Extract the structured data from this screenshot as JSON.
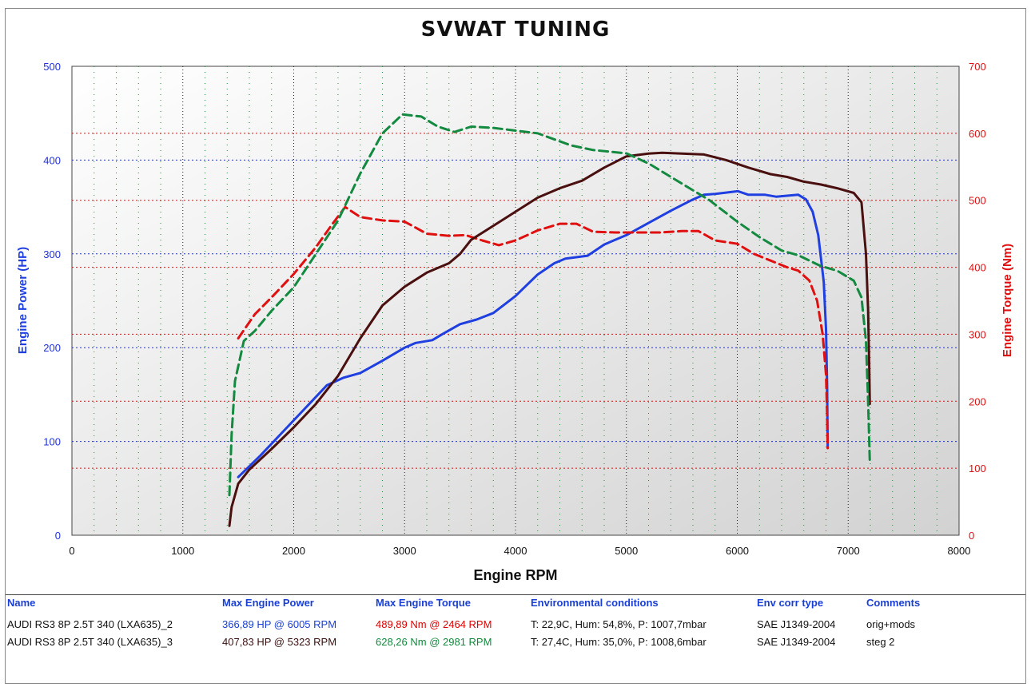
{
  "header": {
    "title": "SVWAT TUNING"
  },
  "chart_data": {
    "type": "line",
    "xlabel": "Engine RPM",
    "ylabel": "Engine Power (HP)",
    "y2label": "Engine Torque (Nm)",
    "xlim": [
      0,
      8000
    ],
    "ylim": [
      0,
      500
    ],
    "y2lim": [
      0,
      700
    ],
    "xticks": [
      "0",
      "1000",
      "2000",
      "3000",
      "4000",
      "5000",
      "6000",
      "7000",
      "8000"
    ],
    "yticks": [
      "0",
      "100",
      "200",
      "300",
      "400",
      "500"
    ],
    "y2ticks": [
      "0",
      "100",
      "200",
      "300",
      "400",
      "500",
      "600",
      "700"
    ],
    "grid": true,
    "series": [
      {
        "axis": "power",
        "style": "solid",
        "color": "#1f3fe0",
        "x": [
          1500,
          1700,
          1900,
          2100,
          2300,
          2450,
          2600,
          2800,
          3000,
          3100,
          3250,
          3350,
          3500,
          3650,
          3800,
          4000,
          4200,
          4350,
          4450,
          4650,
          4800,
          5000,
          5200,
          5400,
          5600,
          5700,
          5800,
          5950,
          6005,
          6100,
          6250,
          6350,
          6450,
          6550,
          6620,
          6680,
          6730,
          6780,
          6800,
          6810,
          6815
        ],
        "y": [
          62,
          85,
          110,
          135,
          160,
          168,
          173,
          186,
          200,
          205,
          208,
          215,
          225,
          230,
          237,
          255,
          278,
          290,
          295,
          298,
          310,
          320,
          333,
          346,
          358,
          363,
          364,
          366,
          366.9,
          363,
          363,
          361,
          362,
          363,
          358,
          345,
          320,
          270,
          220,
          160,
          95
        ]
      },
      {
        "axis": "torque",
        "style": "dashed",
        "color": "#e01010",
        "x": [
          1500,
          1650,
          1800,
          2000,
          2200,
          2350,
          2464,
          2600,
          2800,
          3000,
          3200,
          3400,
          3550,
          3700,
          3850,
          4000,
          4200,
          4400,
          4550,
          4700,
          4900,
          5100,
          5300,
          5500,
          5650,
          5800,
          6000,
          6150,
          6300,
          6450,
          6550,
          6650,
          6720,
          6770,
          6800,
          6810,
          6815
        ],
        "y": [
          294,
          330,
          355,
          390,
          430,
          465,
          489.9,
          475,
          470,
          468,
          450,
          447,
          448,
          440,
          433,
          440,
          455,
          465,
          465,
          453,
          452,
          452,
          452,
          454,
          454,
          440,
          435,
          420,
          410,
          400,
          395,
          380,
          350,
          300,
          240,
          180,
          130
        ]
      },
      {
        "axis": "power",
        "style": "solid",
        "color": "#4a0f0f",
        "x": [
          1420,
          1440,
          1500,
          1600,
          1800,
          2000,
          2200,
          2400,
          2600,
          2800,
          3000,
          3200,
          3400,
          3500,
          3600,
          3800,
          4000,
          4200,
          4400,
          4600,
          4800,
          5000,
          5200,
          5323,
          5500,
          5700,
          5900,
          6100,
          6300,
          6450,
          6600,
          6750,
          6900,
          7050,
          7120,
          7160,
          7180,
          7190,
          7195
        ],
        "y": [
          10,
          30,
          55,
          70,
          92,
          115,
          140,
          170,
          210,
          245,
          265,
          280,
          290,
          300,
          315,
          330,
          345,
          360,
          370,
          378,
          392,
          404,
          407,
          407.8,
          407,
          406,
          400,
          392,
          385,
          382,
          377,
          374,
          370,
          365,
          355,
          300,
          240,
          180,
          140
        ]
      },
      {
        "axis": "torque",
        "style": "dashed",
        "color": "#138a40",
        "x": [
          1420,
          1440,
          1470,
          1550,
          1650,
          1800,
          2000,
          2200,
          2400,
          2600,
          2800,
          2981,
          3150,
          3300,
          3450,
          3600,
          3800,
          4000,
          4200,
          4500,
          4700,
          5000,
          5200,
          5500,
          5750,
          6000,
          6200,
          6400,
          6550,
          6750,
          6900,
          7050,
          7120,
          7160,
          7180,
          7190,
          7195
        ],
        "y": [
          60,
          150,
          230,
          290,
          305,
          335,
          370,
          420,
          470,
          540,
          600,
          628.26,
          625,
          610,
          602,
          610,
          608,
          604,
          600,
          582,
          575,
          570,
          555,
          525,
          500,
          468,
          445,
          425,
          418,
          402,
          395,
          380,
          355,
          290,
          200,
          140,
          110
        ]
      }
    ]
  },
  "results_table": {
    "headers": [
      "Name",
      "Max Engine Power",
      "Max Engine Torque",
      "Environmental conditions",
      "Env corr type",
      "Comments"
    ],
    "rows": [
      {
        "name": "AUDI RS3 8P 2.5T 340 (LXA635)_2",
        "power": "366,89 HP @ 6005 RPM",
        "torque": "489,89 Nm @ 2464 RPM",
        "env": "T: 22,9C, Hum: 54,8%, P: 1007,7mbar",
        "corr": "SAE J1349-2004",
        "comment": "orig+mods"
      },
      {
        "name": "AUDI RS3 8P 2.5T 340 (LXA635)_3",
        "power": "407,83 HP @ 5323 RPM",
        "torque": "628,26 Nm @ 2981 RPM",
        "env": "T: 27,4C, Hum: 35,0%, P: 1008,6mbar",
        "corr": "SAE J1349-2004",
        "comment": "steg 2"
      }
    ]
  }
}
